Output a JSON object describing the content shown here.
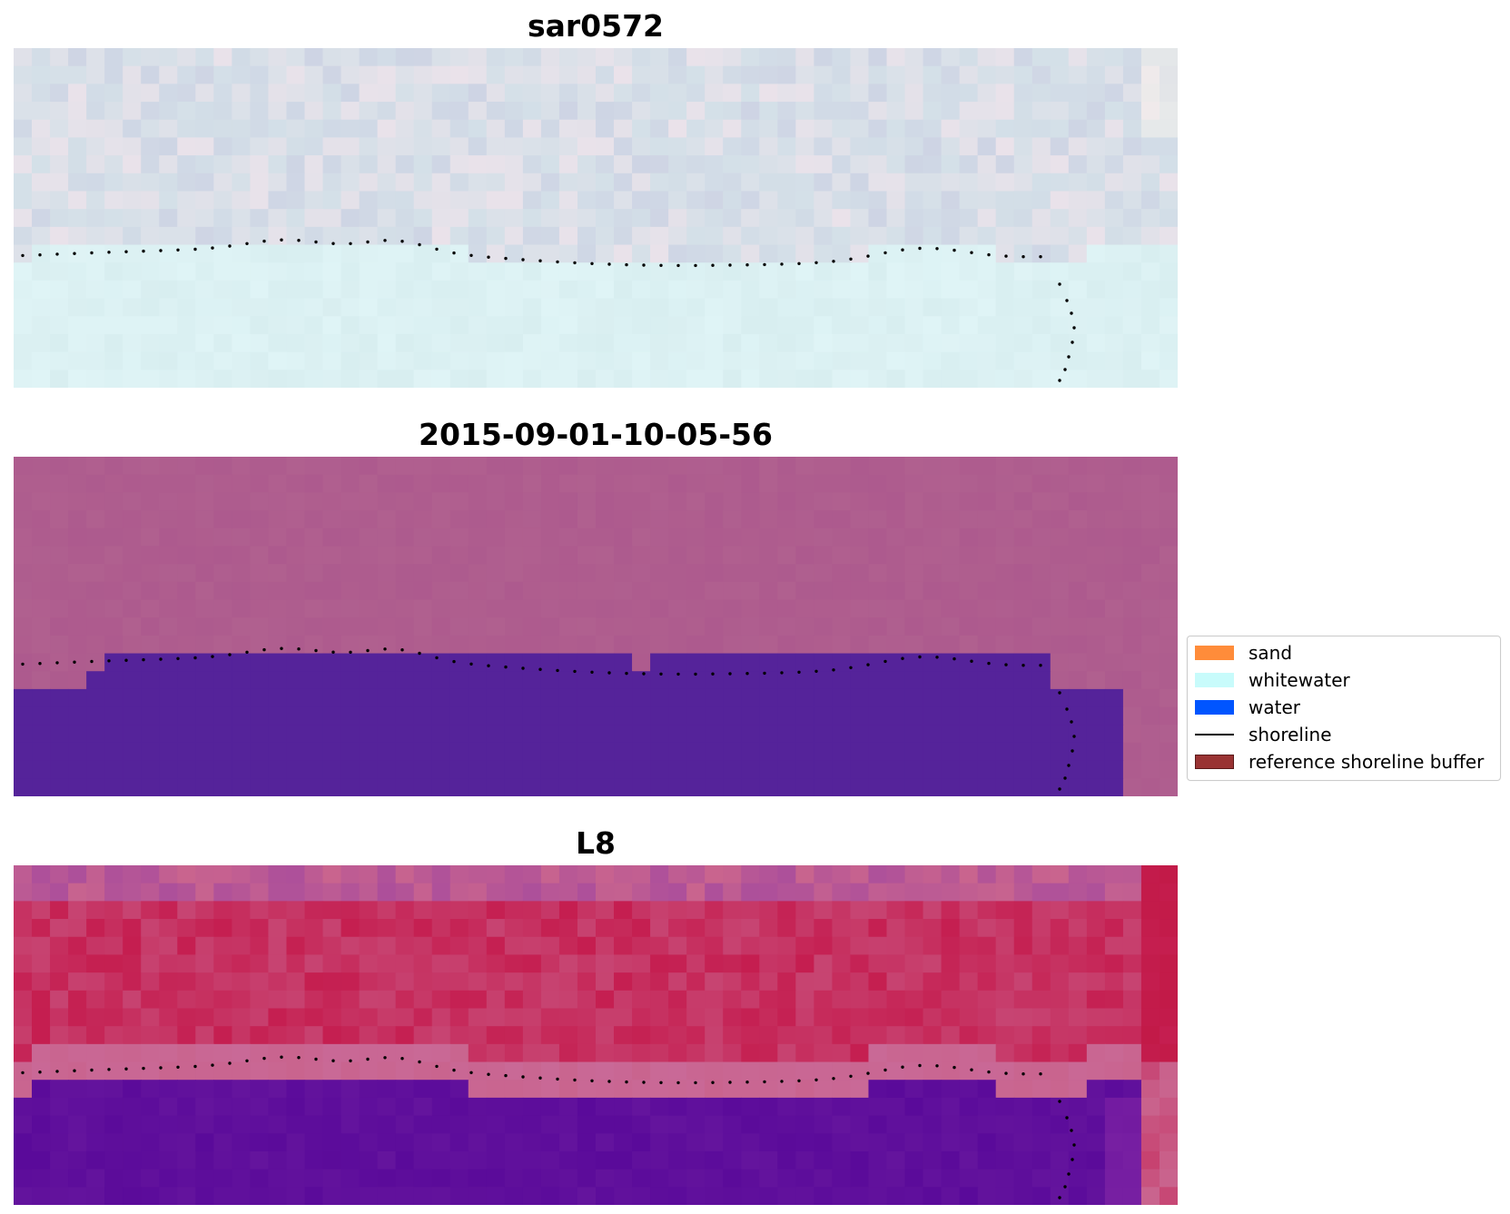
{
  "panels": [
    {
      "title": "sar0572"
    },
    {
      "title": "2015-09-01-10-05-56"
    },
    {
      "title": "L8"
    }
  ],
  "legend": {
    "items": [
      {
        "label": "sand",
        "color": "#ff8c3a"
      },
      {
        "label": "whitewater",
        "color": "#c8fbfb"
      },
      {
        "label": "water",
        "color": "#0055ff"
      },
      {
        "label": "shoreline",
        "color": "#000000"
      },
      {
        "label": "reference shoreline buffer",
        "color": "#993333"
      }
    ]
  },
  "colors": {
    "sar_sky": "#d4e0e8",
    "sar_water": "#d8eef0",
    "class_bg": "#b0608f",
    "class_water": "#55239a",
    "l8_red": "#c51e50",
    "l8_pink": "#c9648e",
    "l8_purple": "#5a0a9a"
  }
}
